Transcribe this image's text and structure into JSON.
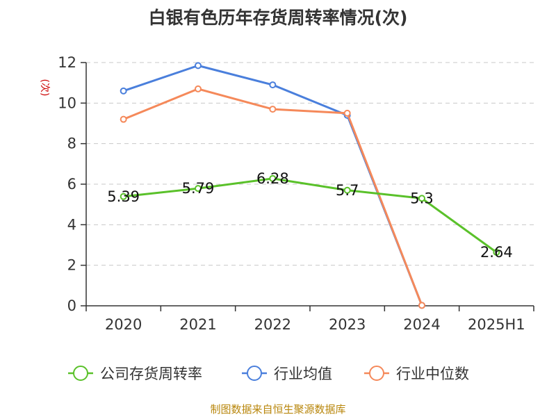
{
  "title": "白银有色历年存货周转率情况(次)",
  "source": "制图数据来自恒生聚源数据库",
  "chart_data": {
    "type": "line",
    "title": "白银有色历年存货周转率情况(次)",
    "ylabel": "(次)",
    "xlabel": "",
    "categories": [
      "2020",
      "2021",
      "2022",
      "2023",
      "2024",
      "2025H1"
    ],
    "ylim": [
      0,
      12
    ],
    "yticks": [
      0,
      2,
      4,
      6,
      8,
      10,
      12
    ],
    "grid": true,
    "legend_position": "bottom",
    "series": [
      {
        "name": "公司存货周转率",
        "color": "#5ac12a",
        "values": [
          5.39,
          5.79,
          6.28,
          5.7,
          5.3,
          2.64
        ],
        "labels": [
          "5.39",
          "5.79",
          "6.28",
          "5.7",
          "5.3",
          "2.64"
        ]
      },
      {
        "name": "行业均值",
        "color": "#4a7fdc",
        "values": [
          10.6,
          11.85,
          10.9,
          9.4,
          0.02,
          null
        ]
      },
      {
        "name": "行业中位数",
        "color": "#f5895a",
        "values": [
          9.2,
          10.7,
          9.7,
          9.5,
          0.02,
          null
        ]
      }
    ]
  }
}
